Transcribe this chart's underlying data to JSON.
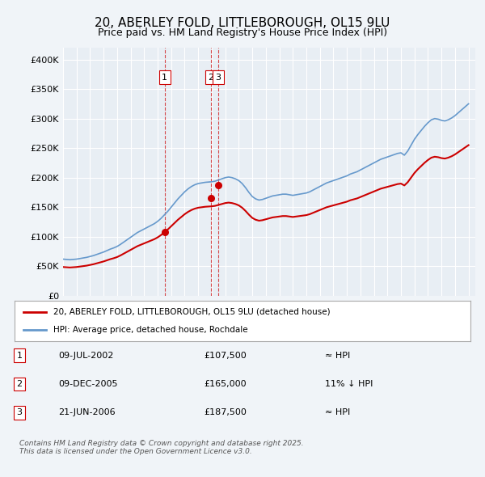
{
  "title": "20, ABERLEY FOLD, LITTLEBOROUGH, OL15 9LU",
  "subtitle": "Price paid vs. HM Land Registry's House Price Index (HPI)",
  "background_color": "#f0f4f8",
  "plot_bg_color": "#e8eef4",
  "grid_color": "#ffffff",
  "ylim": [
    0,
    420000
  ],
  "yticks": [
    0,
    50000,
    100000,
    150000,
    200000,
    250000,
    300000,
    350000,
    400000
  ],
  "ytick_labels": [
    "£0",
    "£50K",
    "£100K",
    "£150K",
    "£200K",
    "£250K",
    "£300K",
    "£350K",
    "£400K"
  ],
  "xmin": 1995.0,
  "xmax": 2025.5,
  "hpi_color": "#6699cc",
  "price_color": "#cc0000",
  "vline_color": "#cc0000",
  "transactions": [
    {
      "id": 1,
      "year": 2002.52,
      "price": 107500,
      "label": "1"
    },
    {
      "id": 2,
      "year": 2005.94,
      "price": 165000,
      "label": "2"
    },
    {
      "id": 3,
      "year": 2006.47,
      "price": 187500,
      "label": "3"
    }
  ],
  "legend_line1": "20, ABERLEY FOLD, LITTLEBOROUGH, OL15 9LU (detached house)",
  "legend_line2": "HPI: Average price, detached house, Rochdale",
  "table_rows": [
    {
      "num": "1",
      "date": "09-JUL-2002",
      "price": "£107,500",
      "hpi": "≈ HPI"
    },
    {
      "num": "2",
      "date": "09-DEC-2005",
      "price": "£165,000",
      "hpi": "11% ↓ HPI"
    },
    {
      "num": "3",
      "date": "21-JUN-2006",
      "price": "£187,500",
      "hpi": "≈ HPI"
    }
  ],
  "footer": "Contains HM Land Registry data © Crown copyright and database right 2025.\nThis data is licensed under the Open Government Licence v3.0.",
  "hpi_data_x": [
    1995.0,
    1995.25,
    1995.5,
    1995.75,
    1996.0,
    1996.25,
    1996.5,
    1996.75,
    1997.0,
    1997.25,
    1997.5,
    1997.75,
    1998.0,
    1998.25,
    1998.5,
    1998.75,
    1999.0,
    1999.25,
    1999.5,
    1999.75,
    2000.0,
    2000.25,
    2000.5,
    2000.75,
    2001.0,
    2001.25,
    2001.5,
    2001.75,
    2002.0,
    2002.25,
    2002.5,
    2002.75,
    2003.0,
    2003.25,
    2003.5,
    2003.75,
    2004.0,
    2004.25,
    2004.5,
    2004.75,
    2005.0,
    2005.25,
    2005.5,
    2005.75,
    2006.0,
    2006.25,
    2006.5,
    2006.75,
    2007.0,
    2007.25,
    2007.5,
    2007.75,
    2008.0,
    2008.25,
    2008.5,
    2008.75,
    2009.0,
    2009.25,
    2009.5,
    2009.75,
    2010.0,
    2010.25,
    2010.5,
    2010.75,
    2011.0,
    2011.25,
    2011.5,
    2011.75,
    2012.0,
    2012.25,
    2012.5,
    2012.75,
    2013.0,
    2013.25,
    2013.5,
    2013.75,
    2014.0,
    2014.25,
    2014.5,
    2014.75,
    2015.0,
    2015.25,
    2015.5,
    2015.75,
    2016.0,
    2016.25,
    2016.5,
    2016.75,
    2017.0,
    2017.25,
    2017.5,
    2017.75,
    2018.0,
    2018.25,
    2018.5,
    2018.75,
    2019.0,
    2019.25,
    2019.5,
    2019.75,
    2020.0,
    2020.25,
    2020.5,
    2020.75,
    2021.0,
    2021.25,
    2021.5,
    2021.75,
    2022.0,
    2022.25,
    2022.5,
    2022.75,
    2023.0,
    2023.25,
    2023.5,
    2023.75,
    2024.0,
    2024.25,
    2024.5,
    2024.75,
    2025.0
  ],
  "hpi_data_y": [
    62000,
    61500,
    61000,
    61500,
    62000,
    63000,
    64000,
    65000,
    66500,
    68000,
    70000,
    72000,
    74000,
    76500,
    79000,
    81000,
    83500,
    87000,
    91000,
    95000,
    99000,
    103000,
    107000,
    110000,
    113000,
    116000,
    119000,
    122000,
    126000,
    131000,
    137000,
    143000,
    150000,
    157000,
    164000,
    170000,
    176000,
    181000,
    185000,
    188000,
    190000,
    191000,
    192000,
    192500,
    193000,
    194000,
    196000,
    198000,
    200000,
    201000,
    200000,
    198000,
    195000,
    190000,
    183000,
    175000,
    168000,
    164000,
    162000,
    163000,
    165000,
    167000,
    169000,
    170000,
    171000,
    172000,
    172000,
    171000,
    170000,
    171000,
    172000,
    173000,
    174000,
    176000,
    179000,
    182000,
    185000,
    188000,
    191000,
    193000,
    195000,
    197000,
    199000,
    201000,
    203000,
    206000,
    208000,
    210000,
    213000,
    216000,
    219000,
    222000,
    225000,
    228000,
    231000,
    233000,
    235000,
    237000,
    239000,
    241000,
    242000,
    238000,
    245000,
    255000,
    265000,
    273000,
    280000,
    287000,
    293000,
    298000,
    300000,
    299000,
    297000,
    296000,
    298000,
    301000,
    305000,
    310000,
    315000,
    320000,
    325000
  ]
}
